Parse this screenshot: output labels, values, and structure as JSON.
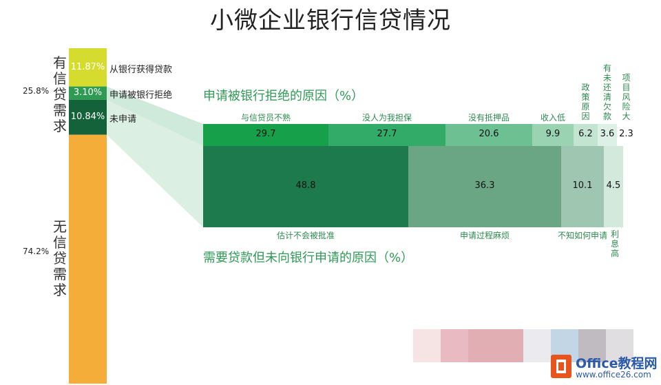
{
  "title": "小微企业银行信贷情况",
  "chart_data": [
    {
      "type": "bar",
      "orientation": "vertical-stacked",
      "groups": [
        {
          "label": "有信贷需求",
          "value": 25.8,
          "value_label": "25.8%",
          "color": "#1a6b3c"
        },
        {
          "label": "无信贷需求",
          "value": 74.2,
          "value_label": "74.2%",
          "color": "#f5ad3a"
        }
      ],
      "segments": [
        {
          "label": "从银行获得贷款",
          "value": 11.87,
          "value_label": "11.87%",
          "color": "#d6dc2e"
        },
        {
          "label": "申请被银行拒绝",
          "value": 3.1,
          "value_label": "3.10%",
          "color": "#2f9a52"
        },
        {
          "label": "未申请",
          "value": 10.84,
          "value_label": "10.84%",
          "color": "#14623a"
        }
      ]
    },
    {
      "type": "bar",
      "orientation": "horizontal-stacked",
      "title": "申请被银行拒绝的原因（%）",
      "categories": [
        "与信贷员不熟",
        "没人为我担保",
        "没有抵押品",
        "收入低",
        "政策原因",
        "有未还清欠款",
        "项目风险大"
      ],
      "values": [
        29.7,
        27.7,
        20.6,
        9.9,
        6.2,
        3.6,
        2.3
      ],
      "value_labels": [
        "29.7",
        "27.7",
        "20.6",
        "9.9",
        "6.2",
        "3.6",
        "2.3"
      ],
      "colors": [
        "#16a04a",
        "#32aa68",
        "#6cc092",
        "#9ad3b2",
        "#c2e4d0",
        "#ddf0e5",
        "#ffffff"
      ]
    },
    {
      "type": "bar",
      "orientation": "horizontal-stacked",
      "title": "需要贷款但未向银行申请的原因（%）",
      "categories": [
        "估计不会被批准",
        "申请过程麻烦",
        "不知如何申请",
        "利息高"
      ],
      "values": [
        48.8,
        36.3,
        10.1,
        4.5
      ],
      "value_labels": [
        "48.8",
        "36.3",
        "10.1",
        "4.5"
      ],
      "colors": [
        "#1d7a4c",
        "#6aa584",
        "#9fc6b1",
        "#d2e9dc"
      ]
    }
  ],
  "watermark": {
    "brand": "Office教程网",
    "url": "www.office26.com"
  }
}
